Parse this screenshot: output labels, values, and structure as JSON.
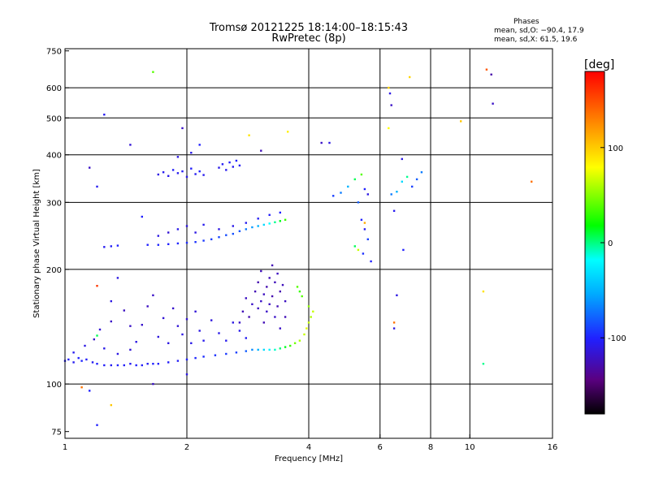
{
  "header": {
    "title_line1": "Tromsø 20121225 18:14:00–18:15:43",
    "title_line2": "RwPretec (8p)",
    "phase_heading": "Phases",
    "phase_o": "mean, sd,O: −90.4, 17.9",
    "phase_x": "mean, sd,X:  61.5, 19.6"
  },
  "chart_data": {
    "type": "scatter",
    "title": "Tromsø 20121225 18:14:00–18:15:43",
    "subtitle": "RwPretec (8p)",
    "xlabel": "Frequency [MHz]",
    "ylabel": "Stationary phase Virtual Height [km]",
    "x_scale": "log",
    "y_scale": "log",
    "xlim": [
      1,
      16
    ],
    "ylim": [
      72,
      760
    ],
    "x_ticks": [
      1,
      2,
      4,
      6,
      8,
      10,
      16
    ],
    "y_ticks": [
      75,
      100,
      200,
      300,
      400,
      500,
      600,
      750
    ],
    "x_gridlines": [
      2,
      4,
      6,
      8,
      10
    ],
    "y_gridlines": [
      100,
      200,
      300,
      400,
      500,
      600
    ],
    "grid": true,
    "colorbar": {
      "label": "[deg]",
      "range": [
        -180,
        180
      ],
      "ticks": [
        -100,
        0,
        100
      ],
      "colors": [
        "#000000",
        "#5a0080",
        "#2020ff",
        "#00aaff",
        "#00ffff",
        "#00ff00",
        "#ffff00",
        "#ff8000",
        "#ff0000"
      ]
    },
    "series": [
      {
        "points": [
          [
            1.0,
            115,
            -90
          ],
          [
            1.02,
            116,
            -92
          ],
          [
            1.05,
            114,
            -95
          ],
          [
            1.08,
            117,
            -90
          ],
          [
            1.1,
            115,
            -88
          ],
          [
            1.13,
            116,
            -92
          ],
          [
            1.17,
            114,
            -95
          ],
          [
            1.2,
            113,
            -90
          ],
          [
            1.25,
            112,
            -92
          ],
          [
            1.3,
            112,
            -94
          ],
          [
            1.35,
            112,
            -90
          ],
          [
            1.4,
            112,
            -92
          ],
          [
            1.45,
            113,
            -95
          ],
          [
            1.5,
            112,
            -90
          ],
          [
            1.55,
            112,
            -92
          ],
          [
            1.6,
            113,
            -94
          ],
          [
            1.65,
            113,
            -90
          ],
          [
            1.7,
            113,
            -91
          ],
          [
            1.8,
            114,
            -92
          ],
          [
            1.9,
            115,
            -93
          ],
          [
            2.0,
            116,
            -90
          ],
          [
            2.1,
            117,
            -88
          ],
          [
            2.2,
            118,
            -86
          ],
          [
            2.35,
            119,
            -84
          ],
          [
            2.5,
            120,
            -82
          ],
          [
            2.65,
            121,
            -80
          ],
          [
            2.8,
            122,
            -70
          ],
          [
            2.9,
            123,
            -55
          ],
          [
            3.0,
            123,
            -40
          ],
          [
            3.1,
            123,
            -20
          ],
          [
            3.2,
            123,
            -5
          ],
          [
            3.3,
            123,
            10
          ],
          [
            3.4,
            124,
            25
          ],
          [
            3.5,
            125,
            40
          ],
          [
            3.6,
            126,
            55
          ],
          [
            3.7,
            128,
            65
          ],
          [
            3.8,
            130,
            75
          ],
          [
            3.9,
            135,
            80
          ],
          [
            3.95,
            140,
            85
          ],
          [
            4.0,
            145,
            80
          ],
          [
            4.05,
            150,
            75
          ],
          [
            4.1,
            155,
            80
          ],
          [
            4.0,
            160,
            70
          ],
          [
            3.85,
            170,
            60
          ],
          [
            3.8,
            175,
            55
          ],
          [
            3.75,
            180,
            60
          ]
        ]
      },
      {
        "points": [
          [
            1.05,
            121,
            -95
          ],
          [
            1.12,
            126,
            -100
          ],
          [
            1.18,
            131,
            -110
          ],
          [
            1.22,
            139,
            -105
          ],
          [
            1.25,
            124,
            -98
          ],
          [
            1.3,
            146,
            -110
          ],
          [
            1.35,
            120,
            -100
          ],
          [
            1.4,
            156,
            -112
          ],
          [
            1.45,
            123,
            -105
          ],
          [
            1.5,
            129,
            -100
          ],
          [
            1.55,
            143,
            -108
          ],
          [
            1.6,
            160,
            -112
          ],
          [
            1.65,
            171,
            -110
          ],
          [
            1.7,
            133,
            -102
          ],
          [
            1.75,
            149,
            -105
          ],
          [
            1.8,
            128,
            -100
          ],
          [
            1.85,
            158,
            -108
          ],
          [
            1.9,
            142,
            -104
          ],
          [
            1.95,
            135,
            -100
          ],
          [
            2.0,
            148,
            -106
          ],
          [
            2.05,
            128,
            -98
          ],
          [
            2.1,
            155,
            -104
          ],
          [
            2.15,
            138,
            -100
          ],
          [
            2.2,
            130,
            -96
          ],
          [
            2.3,
            147,
            -102
          ],
          [
            2.4,
            136,
            -98
          ],
          [
            2.5,
            130,
            -96
          ],
          [
            2.6,
            145,
            -100
          ],
          [
            2.7,
            138,
            -97
          ],
          [
            2.8,
            132,
            -95
          ]
        ]
      },
      {
        "points": [
          [
            2.7,
            145,
            -110
          ],
          [
            2.75,
            155,
            -115
          ],
          [
            2.8,
            168,
            -112
          ],
          [
            2.85,
            150,
            -118
          ],
          [
            2.9,
            162,
            -110
          ],
          [
            2.95,
            175,
            -116
          ],
          [
            3.0,
            158,
            -112
          ],
          [
            3.0,
            185,
            -118
          ],
          [
            3.05,
            165,
            -110
          ],
          [
            3.05,
            198,
            -114
          ],
          [
            3.1,
            145,
            -116
          ],
          [
            3.1,
            172,
            -112
          ],
          [
            3.15,
            180,
            -118
          ],
          [
            3.15,
            155,
            -110
          ],
          [
            3.2,
            190,
            -114
          ],
          [
            3.2,
            162,
            -112
          ],
          [
            3.25,
            205,
            -116
          ],
          [
            3.25,
            170,
            -118
          ],
          [
            3.3,
            150,
            -110
          ],
          [
            3.3,
            185,
            -114
          ],
          [
            3.35,
            195,
            -112
          ],
          [
            3.35,
            160,
            -116
          ],
          [
            3.4,
            175,
            -118
          ],
          [
            3.4,
            140,
            -110
          ],
          [
            3.45,
            182,
            -114
          ],
          [
            3.5,
            165,
            -112
          ],
          [
            3.5,
            150,
            -116
          ]
        ]
      },
      {
        "points": [
          [
            1.25,
            229,
            -95
          ],
          [
            1.3,
            230,
            -92
          ],
          [
            1.35,
            231,
            -90
          ],
          [
            1.6,
            232,
            -90
          ],
          [
            1.7,
            232,
            -88
          ],
          [
            1.8,
            233,
            -90
          ],
          [
            1.9,
            234,
            -88
          ],
          [
            2.0,
            235,
            -86
          ],
          [
            2.1,
            236,
            -84
          ],
          [
            2.2,
            238,
            -82
          ],
          [
            2.3,
            240,
            -80
          ],
          [
            2.4,
            243,
            -78
          ],
          [
            2.5,
            246,
            -76
          ],
          [
            2.6,
            248,
            -74
          ],
          [
            2.7,
            252,
            -72
          ],
          [
            2.8,
            255,
            -60
          ],
          [
            2.9,
            258,
            -50
          ],
          [
            3.0,
            260,
            -40
          ],
          [
            3.1,
            262,
            -20
          ],
          [
            3.2,
            264,
            0
          ],
          [
            3.3,
            266,
            20
          ],
          [
            3.4,
            268,
            40
          ],
          [
            3.5,
            270,
            55
          ],
          [
            1.7,
            245,
            -100
          ],
          [
            1.8,
            250,
            -105
          ],
          [
            1.9,
            255,
            -98
          ],
          [
            2.0,
            260,
            -102
          ],
          [
            2.1,
            250,
            -100
          ],
          [
            2.2,
            262,
            -96
          ],
          [
            2.4,
            255,
            -100
          ],
          [
            2.6,
            260,
            -98
          ],
          [
            2.8,
            265,
            -96
          ],
          [
            3.0,
            272,
            -94
          ],
          [
            3.2,
            278,
            -92
          ],
          [
            3.4,
            282,
            -90
          ]
        ]
      },
      {
        "points": [
          [
            1.7,
            355,
            -100
          ],
          [
            1.75,
            360,
            -95
          ],
          [
            1.8,
            352,
            -98
          ],
          [
            1.85,
            365,
            -92
          ],
          [
            1.9,
            358,
            -96
          ],
          [
            1.95,
            362,
            -94
          ],
          [
            2.0,
            350,
            -98
          ],
          [
            2.05,
            368,
            -92
          ],
          [
            2.1,
            356,
            -95
          ],
          [
            2.15,
            362,
            -90
          ],
          [
            2.2,
            354,
            -96
          ],
          [
            2.4,
            370,
            -98
          ],
          [
            2.45,
            378,
            -94
          ],
          [
            2.5,
            365,
            -96
          ],
          [
            2.55,
            382,
            -92
          ],
          [
            2.6,
            372,
            -95
          ],
          [
            2.65,
            386,
            -90
          ],
          [
            2.7,
            375,
            -94
          ],
          [
            1.9,
            395,
            -100
          ],
          [
            2.05,
            405,
            -98
          ]
        ]
      },
      {
        "points": [
          [
            4.6,
            312,
            -80
          ],
          [
            4.8,
            318,
            -60
          ],
          [
            5.0,
            330,
            -40
          ],
          [
            5.2,
            345,
            30
          ],
          [
            5.4,
            355,
            60
          ],
          [
            5.5,
            325,
            -90
          ],
          [
            5.6,
            315,
            -100
          ],
          [
            5.3,
            300,
            -70
          ],
          [
            5.4,
            270,
            -90
          ],
          [
            5.5,
            255,
            -95
          ],
          [
            5.6,
            240,
            -80
          ],
          [
            5.45,
            220,
            -85
          ],
          [
            5.7,
            210,
            -90
          ],
          [
            5.2,
            230,
            30
          ],
          [
            5.3,
            225,
            80
          ],
          [
            5.5,
            265,
            120
          ],
          [
            6.4,
            315,
            -60
          ],
          [
            6.6,
            320,
            -40
          ],
          [
            6.8,
            340,
            -20
          ],
          [
            7.0,
            350,
            20
          ],
          [
            7.2,
            330,
            -80
          ],
          [
            7.4,
            345,
            -70
          ],
          [
            7.6,
            360,
            -60
          ],
          [
            6.5,
            285,
            -95
          ]
        ]
      },
      {
        "points": [
          [
            1.15,
            370,
            -110
          ],
          [
            1.2,
            330,
            -95
          ],
          [
            1.25,
            510,
            -95
          ],
          [
            1.35,
            190,
            -100
          ],
          [
            1.45,
            425,
            -105
          ],
          [
            1.55,
            275,
            -90
          ],
          [
            1.65,
            660,
            60
          ],
          [
            1.95,
            470,
            -110
          ],
          [
            2.15,
            425,
            -90
          ],
          [
            2.85,
            450,
            100
          ],
          [
            3.05,
            410,
            -115
          ],
          [
            3.55,
            460,
            95
          ],
          [
            4.3,
            430,
            -110
          ],
          [
            4.5,
            430,
            -100
          ],
          [
            6.3,
            600,
            105
          ],
          [
            6.35,
            580,
            -100
          ],
          [
            6.4,
            540,
            -110
          ],
          [
            6.3,
            470,
            90
          ],
          [
            7.1,
            640,
            105
          ],
          [
            6.8,
            390,
            -100
          ],
          [
            9.5,
            490,
            110
          ],
          [
            11.0,
            670,
            150
          ],
          [
            11.4,
            545,
            -110
          ],
          [
            11.3,
            650,
            -120
          ],
          [
            14.2,
            340,
            140
          ],
          [
            1.1,
            98,
            140
          ],
          [
            1.15,
            96,
            -90
          ],
          [
            1.2,
            78,
            -90
          ],
          [
            1.3,
            88,
            110
          ],
          [
            1.65,
            100,
            -110
          ],
          [
            2.0,
            106,
            -100
          ],
          [
            1.3,
            165,
            -100
          ],
          [
            1.2,
            181,
            160
          ],
          [
            1.45,
            142,
            -110
          ],
          [
            1.2,
            134,
            30
          ],
          [
            6.5,
            145,
            140
          ],
          [
            6.5,
            140,
            -100
          ],
          [
            6.6,
            171,
            -100
          ],
          [
            10.8,
            175,
            100
          ],
          [
            10.8,
            113,
            20
          ],
          [
            6.85,
            225,
            -90
          ]
        ]
      }
    ]
  }
}
